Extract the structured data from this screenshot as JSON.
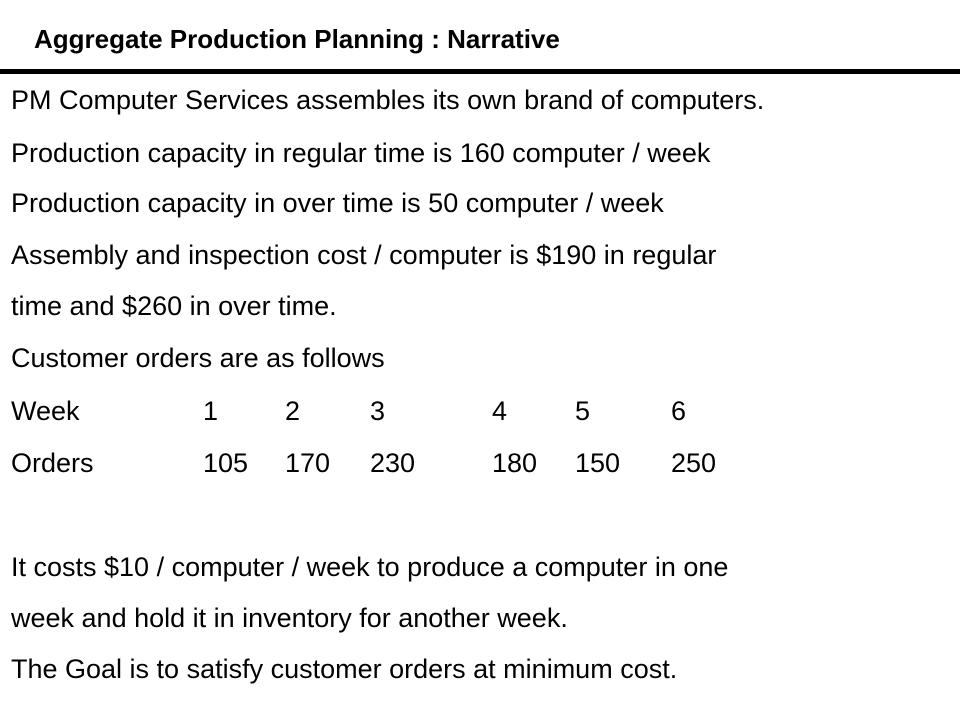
{
  "slide": {
    "title": "Aggregate Production Planning : Narrative",
    "lines": [
      "PM Computer Services assembles its own brand of computers.",
      "Production capacity in regular time  is 160 computer / week",
      "Production capacity in over time  is 50 computer / week",
      "Assembly and inspection cost / computer is $190 in regular",
      "time and $260 in over time.",
      "Customer orders are as follows"
    ],
    "orders_table": {
      "header": [
        "Week",
        "1",
        "2",
        "3",
        "4",
        "5",
        "6"
      ],
      "row": [
        "Orders",
        "105",
        "170",
        "230",
        "180",
        "150",
        "250"
      ]
    },
    "closing_lines": [
      "It costs $10 / computer / week to produce a computer in one",
      "week and hold it in inventory for another week.",
      "The Goal is to satisfy customer orders at minimum cost."
    ]
  }
}
